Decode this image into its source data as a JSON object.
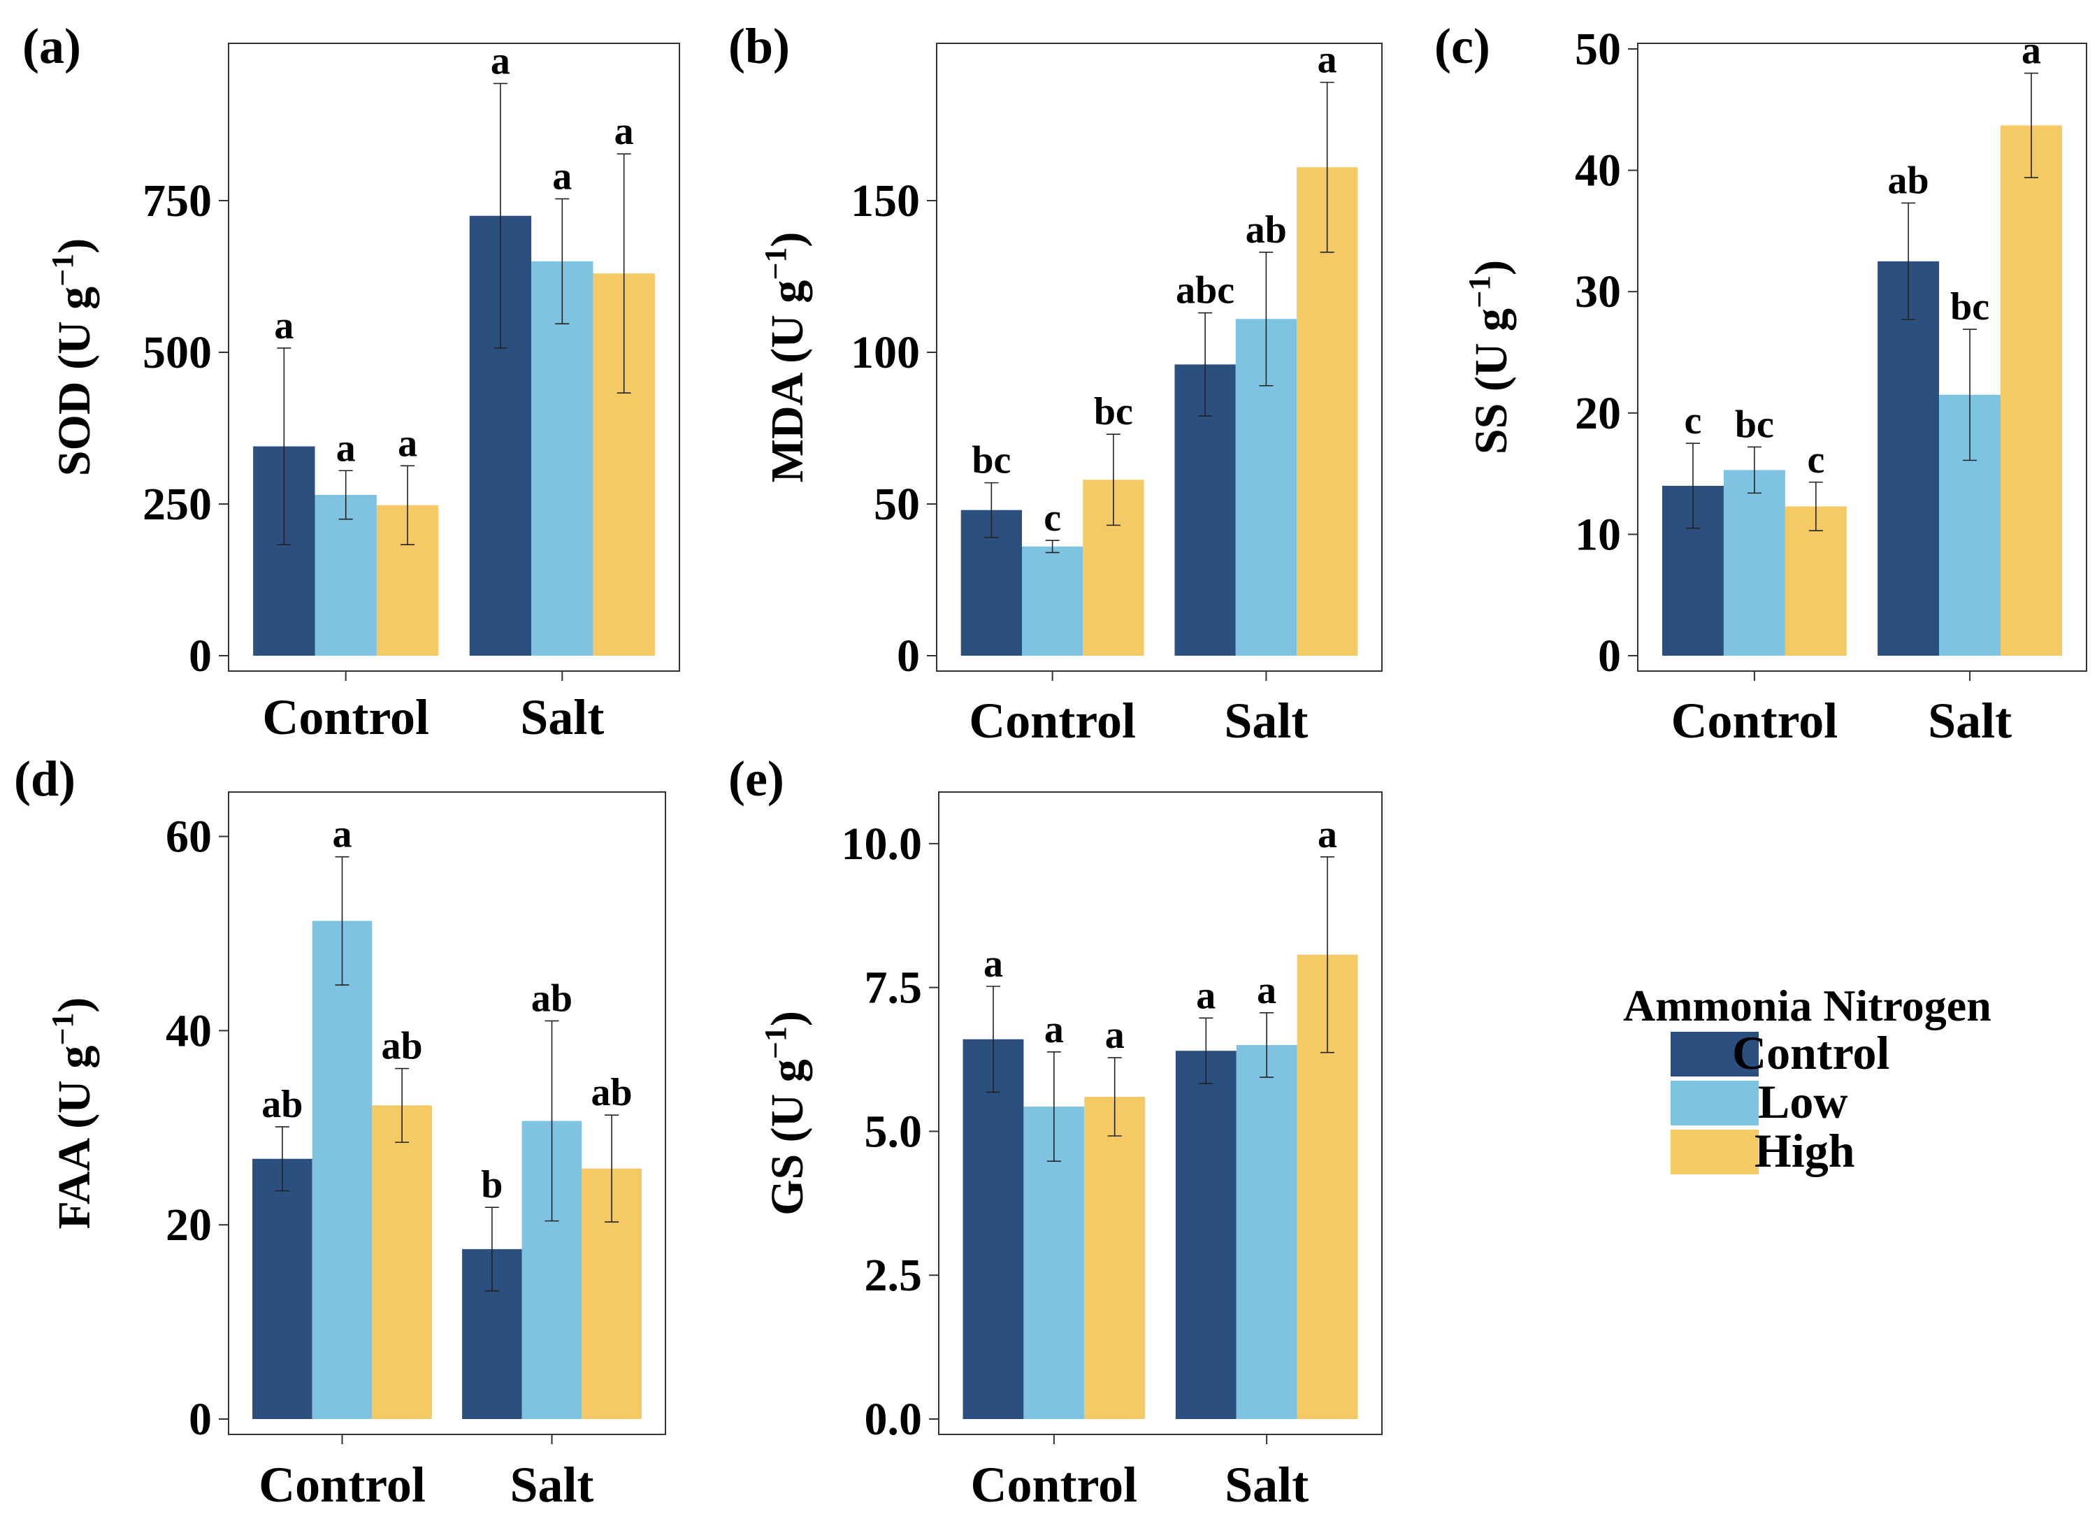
{
  "chart_data": [
    {
      "type": "bar",
      "panel_label": "(a)",
      "ylabel": "SOD (U g",
      "ylabel_sup": "−1",
      "ylabel_close": ")",
      "categories": [
        "Control",
        "Salt"
      ],
      "ylim": [
        0,
        1000
      ],
      "yticks": [
        0,
        250,
        500,
        750
      ],
      "ytick_labels": [
        "0",
        "250",
        "500",
        "750"
      ],
      "series": [
        {
          "name": "Control",
          "values": [
            345,
            725
          ],
          "errors": [
            162,
            218
          ],
          "letters": [
            "a",
            "a"
          ]
        },
        {
          "name": "Low",
          "values": [
            265,
            650
          ],
          "errors": [
            40,
            103
          ],
          "letters": [
            "a",
            "a"
          ]
        },
        {
          "name": "High",
          "values": [
            248,
            630
          ],
          "errors": [
            65,
            197
          ],
          "letters": [
            "a",
            "a"
          ]
        }
      ]
    },
    {
      "type": "bar",
      "panel_label": "(b)",
      "ylabel": "MDA (U g",
      "ylabel_sup": "−1",
      "ylabel_close": ")",
      "categories": [
        "Control",
        "Salt"
      ],
      "ylim": [
        0,
        200
      ],
      "yticks": [
        0,
        50,
        100,
        150
      ],
      "ytick_labels": [
        "0",
        "50",
        "100",
        "150"
      ],
      "series": [
        {
          "name": "Control",
          "values": [
            48,
            96
          ],
          "errors": [
            9,
            17
          ],
          "letters": [
            "bc",
            "abc"
          ]
        },
        {
          "name": "Low",
          "values": [
            36,
            111
          ],
          "errors": [
            2,
            22
          ],
          "letters": [
            "c",
            "ab"
          ]
        },
        {
          "name": "High",
          "values": [
            58,
            161
          ],
          "errors": [
            15,
            28
          ],
          "letters": [
            "bc",
            "a"
          ]
        }
      ]
    },
    {
      "type": "bar",
      "panel_label": "(c)",
      "ylabel": "SS (U g",
      "ylabel_sup": "−1",
      "ylabel_close": ")",
      "categories": [
        "Control",
        "Salt"
      ],
      "ylim": [
        0,
        50
      ],
      "yticks": [
        0,
        10,
        20,
        30,
        40,
        50
      ],
      "ytick_labels": [
        "0",
        "10",
        "20",
        "30",
        "40",
        "50"
      ],
      "series": [
        {
          "name": "Control",
          "values": [
            14,
            32.5
          ],
          "errors": [
            3.5,
            4.8
          ],
          "letters": [
            "c",
            "ab"
          ]
        },
        {
          "name": "Low",
          "values": [
            15.3,
            21.5
          ],
          "errors": [
            1.9,
            5.4
          ],
          "letters": [
            "bc",
            "bc"
          ]
        },
        {
          "name": "High",
          "values": [
            12.3,
            43.7
          ],
          "errors": [
            2,
            4.3
          ],
          "letters": [
            "c",
            "a"
          ]
        }
      ]
    },
    {
      "type": "bar",
      "panel_label": "(d)",
      "ylabel": "FAA (U g",
      "ylabel_sup": "−1",
      "ylabel_close": ")",
      "categories": [
        "Control",
        "Salt"
      ],
      "ylim": [
        0,
        64
      ],
      "yticks": [
        0,
        20,
        40,
        60
      ],
      "ytick_labels": [
        "0",
        "20",
        "40",
        "60"
      ],
      "series": [
        {
          "name": "Control",
          "values": [
            26.8,
            17.5
          ],
          "errors": [
            3.3,
            4.3
          ],
          "letters": [
            "ab",
            "b"
          ]
        },
        {
          "name": "Low",
          "values": [
            51.3,
            30.7
          ],
          "errors": [
            6.6,
            10.3
          ],
          "letters": [
            "a",
            "ab"
          ]
        },
        {
          "name": "High",
          "values": [
            32.3,
            25.8
          ],
          "errors": [
            3.8,
            5.5
          ],
          "letters": [
            "ab",
            "ab"
          ]
        }
      ]
    },
    {
      "type": "bar",
      "panel_label": "(e)",
      "ylabel": "GS (U g",
      "ylabel_sup": "−1",
      "ylabel_close": ")",
      "categories": [
        "Control",
        "Salt"
      ],
      "ylim": [
        0,
        10.8
      ],
      "yticks": [
        0,
        2.5,
        5,
        7.5,
        10
      ],
      "ytick_labels": [
        "0.0",
        "2.5",
        "5.0",
        "7.5",
        "10.0"
      ],
      "series": [
        {
          "name": "Control",
          "values": [
            6.6,
            6.4
          ],
          "errors": [
            0.92,
            0.57
          ],
          "letters": [
            "a",
            "a"
          ]
        },
        {
          "name": "Low",
          "values": [
            5.43,
            6.5
          ],
          "errors": [
            0.95,
            0.56
          ],
          "letters": [
            "a",
            "a"
          ]
        },
        {
          "name": "High",
          "values": [
            5.6,
            8.07
          ],
          "errors": [
            0.68,
            1.7
          ],
          "letters": [
            "a",
            "a"
          ]
        }
      ]
    }
  ],
  "legend": {
    "title": "Ammonia Nitrogen",
    "items": [
      "Control",
      "Low",
      "High"
    ]
  },
  "colors": {
    "Control": "#2b4f7e",
    "Low": "#7ec4e2",
    "High": "#f5ca66"
  }
}
